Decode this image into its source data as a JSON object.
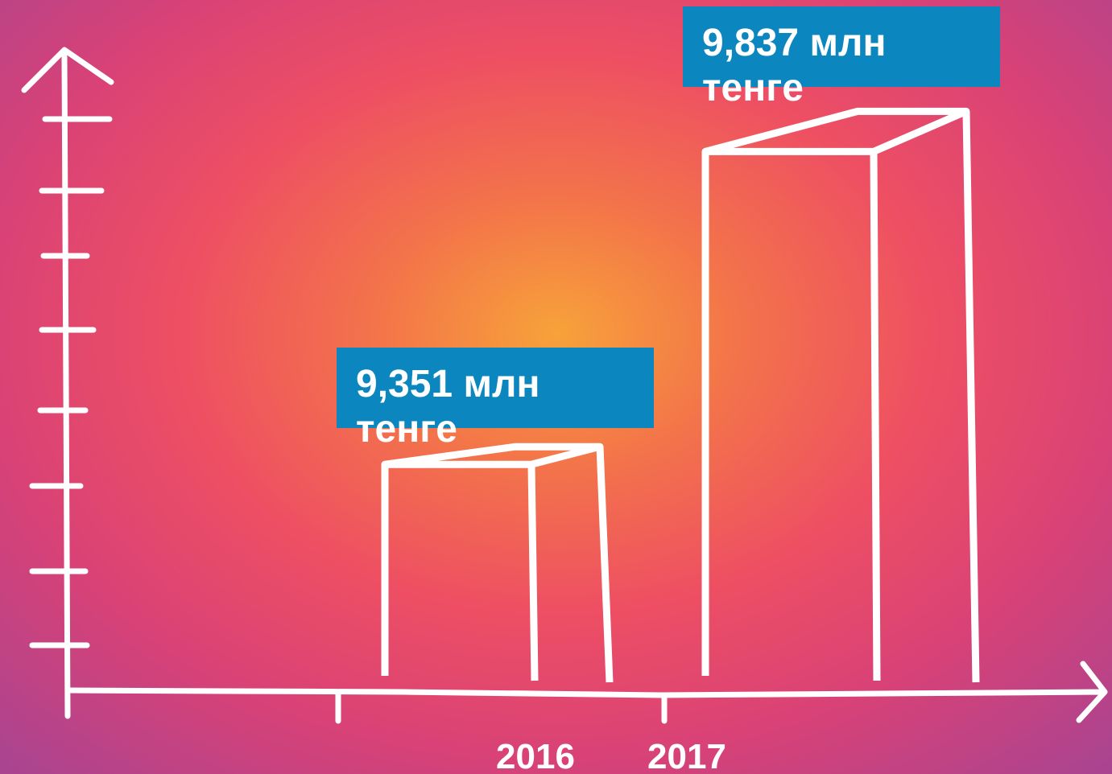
{
  "chart_data": {
    "type": "bar",
    "categories": [
      "2016",
      "2017"
    ],
    "values": [
      9.351,
      9.837
    ],
    "value_labels": [
      "9,351 млн тенге",
      "9,837 млн тенге"
    ],
    "color": "#ffffff",
    "ylim": [
      9,
      10
    ]
  }
}
